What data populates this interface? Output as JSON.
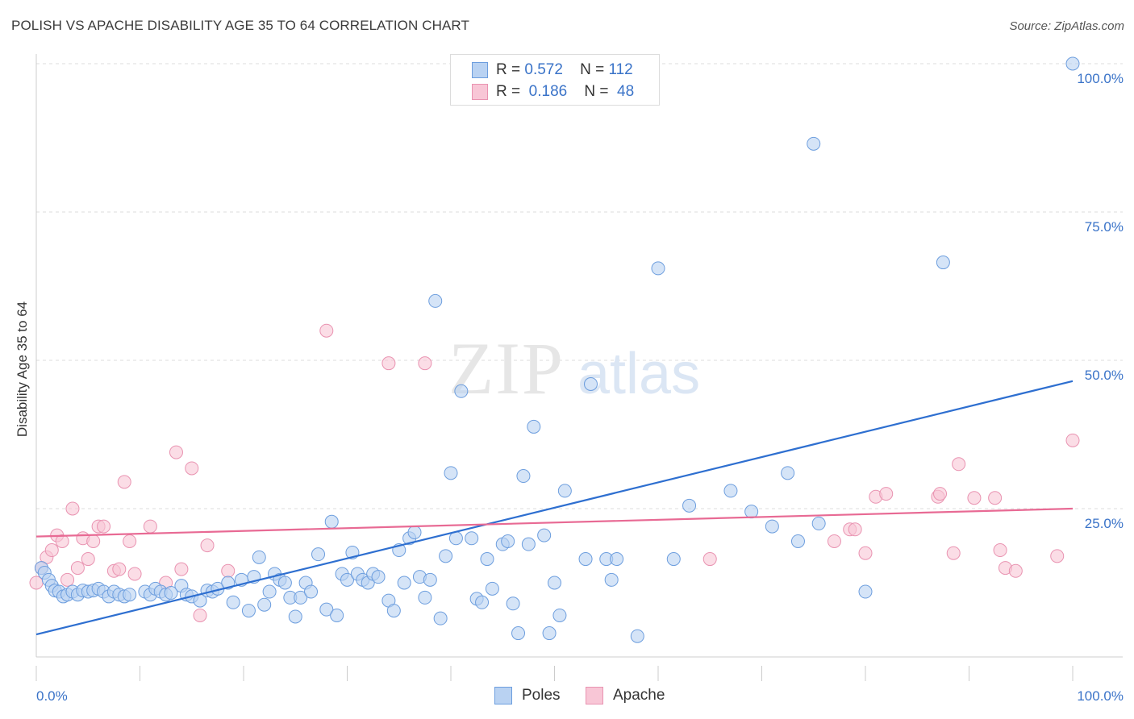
{
  "title": "POLISH VS APACHE DISABILITY AGE 35 TO 64 CORRELATION CHART",
  "source": "Source: ZipAtlas.com",
  "watermark": {
    "zip": "ZIP",
    "atlas": "atlas"
  },
  "legend": {
    "rows": [
      {
        "r_label": "R =",
        "r_value": "0.572",
        "n_label": "N =",
        "n_value": "112"
      },
      {
        "r_label": "R =",
        "r_value": "0.186",
        "n_label": "N =",
        "n_value": "48"
      }
    ]
  },
  "bottom_legend": [
    "Poles",
    "Apache"
  ],
  "colors": {
    "poles_fill": "#b9d2f2",
    "poles_stroke": "#6d9ede",
    "poles_line": "#2e6fd0",
    "apache_fill": "#f8c6d6",
    "apache_stroke": "#e993b1",
    "apache_line": "#e86a94",
    "tick_label": "#3a73c8",
    "grid": "#dcdcdc"
  },
  "chart_data": {
    "type": "scatter",
    "title": "POLISH VS APACHE DISABILITY AGE 35 TO 64 CORRELATION CHART",
    "xlabel": "",
    "ylabel": "Disability Age 35 to 64",
    "xlim": [
      0,
      100
    ],
    "ylim": [
      0,
      100
    ],
    "x_tick_labels": [
      "0.0%",
      "100.0%"
    ],
    "y_tick_labels": [
      "25.0%",
      "50.0%",
      "75.0%",
      "100.0%"
    ],
    "y_ticks": [
      25,
      50,
      75,
      100
    ],
    "grid": true,
    "series": [
      {
        "name": "Poles",
        "trendline": [
          [
            0,
            3.8
          ],
          [
            100,
            46.5
          ]
        ],
        "points": [
          [
            0.5,
            15.0
          ],
          [
            0.8,
            14.2
          ],
          [
            1.2,
            13.0
          ],
          [
            1.5,
            12.0
          ],
          [
            1.8,
            11.2
          ],
          [
            2.2,
            11.0
          ],
          [
            2.6,
            10.2
          ],
          [
            3.0,
            10.5
          ],
          [
            3.5,
            11.0
          ],
          [
            4.0,
            10.5
          ],
          [
            4.5,
            11.2
          ],
          [
            5.0,
            11.0
          ],
          [
            5.5,
            11.2
          ],
          [
            6.0,
            11.5
          ],
          [
            6.5,
            11.0
          ],
          [
            7.0,
            10.2
          ],
          [
            7.5,
            11.0
          ],
          [
            8.0,
            10.5
          ],
          [
            8.5,
            10.2
          ],
          [
            9.0,
            10.5
          ],
          [
            10.5,
            11.0
          ],
          [
            11.0,
            10.5
          ],
          [
            11.5,
            11.5
          ],
          [
            12.0,
            11.0
          ],
          [
            12.5,
            10.5
          ],
          [
            13.0,
            10.8
          ],
          [
            14.0,
            12.0
          ],
          [
            14.5,
            10.5
          ],
          [
            15.0,
            10.2
          ],
          [
            15.8,
            9.5
          ],
          [
            16.5,
            11.2
          ],
          [
            17.0,
            11.0
          ],
          [
            17.5,
            11.5
          ],
          [
            18.5,
            12.5
          ],
          [
            19.0,
            9.2
          ],
          [
            19.8,
            13.0
          ],
          [
            20.5,
            7.8
          ],
          [
            21.0,
            13.5
          ],
          [
            21.5,
            16.8
          ],
          [
            22.0,
            8.8
          ],
          [
            22.5,
            11.0
          ],
          [
            23.0,
            14.0
          ],
          [
            23.5,
            13.0
          ],
          [
            24.0,
            12.5
          ],
          [
            24.5,
            10.0
          ],
          [
            25.0,
            6.8
          ],
          [
            25.5,
            10.0
          ],
          [
            26.0,
            12.5
          ],
          [
            26.5,
            11.0
          ],
          [
            27.2,
            17.3
          ],
          [
            28.0,
            8.0
          ],
          [
            28.5,
            22.8
          ],
          [
            29.0,
            7.0
          ],
          [
            29.5,
            14.0
          ],
          [
            30.0,
            13.0
          ],
          [
            30.5,
            17.6
          ],
          [
            31.0,
            14.0
          ],
          [
            31.5,
            13.0
          ],
          [
            32.0,
            12.5
          ],
          [
            32.5,
            14.0
          ],
          [
            33.0,
            13.5
          ],
          [
            34.0,
            9.5
          ],
          [
            34.5,
            7.8
          ],
          [
            35.0,
            18.0
          ],
          [
            35.5,
            12.5
          ],
          [
            36.0,
            20.0
          ],
          [
            36.5,
            21.0
          ],
          [
            37.0,
            13.5
          ],
          [
            37.5,
            10.0
          ],
          [
            38.0,
            13.0
          ],
          [
            38.5,
            60.0
          ],
          [
            39.0,
            6.5
          ],
          [
            39.5,
            17.0
          ],
          [
            40.0,
            31.0
          ],
          [
            40.5,
            20.0
          ],
          [
            41.0,
            44.8
          ],
          [
            42.0,
            20.0
          ],
          [
            42.5,
            9.8
          ],
          [
            43.0,
            9.2
          ],
          [
            43.5,
            16.5
          ],
          [
            44.0,
            11.5
          ],
          [
            45.0,
            19.0
          ],
          [
            45.5,
            19.5
          ],
          [
            46.0,
            9.0
          ],
          [
            46.5,
            4.0
          ],
          [
            47.0,
            30.5
          ],
          [
            47.5,
            19.0
          ],
          [
            48.0,
            38.8
          ],
          [
            49.0,
            20.5
          ],
          [
            49.5,
            4.0
          ],
          [
            50.0,
            12.5
          ],
          [
            50.5,
            7.0
          ],
          [
            51.0,
            28.0
          ],
          [
            53.0,
            16.5
          ],
          [
            53.5,
            46.0
          ],
          [
            55.0,
            16.5
          ],
          [
            55.5,
            13.0
          ],
          [
            56.0,
            16.5
          ],
          [
            58.0,
            3.5
          ],
          [
            60.0,
            65.5
          ],
          [
            61.5,
            16.5
          ],
          [
            75.0,
            86.5
          ],
          [
            75.5,
            22.5
          ],
          [
            80.0,
            11.0
          ],
          [
            87.5,
            66.5
          ],
          [
            100.0,
            100.0
          ],
          [
            63.0,
            25.5
          ],
          [
            67.0,
            28.0
          ],
          [
            69.0,
            24.5
          ],
          [
            71.0,
            22.0
          ],
          [
            72.5,
            31.0
          ],
          [
            73.5,
            19.5
          ]
        ]
      },
      {
        "name": "Apache",
        "trendline": [
          [
            0,
            20.3
          ],
          [
            100,
            25.0
          ]
        ],
        "points": [
          [
            0.0,
            12.5
          ],
          [
            0.5,
            15.0
          ],
          [
            1.0,
            16.8
          ],
          [
            1.5,
            18.0
          ],
          [
            2.0,
            20.5
          ],
          [
            2.5,
            19.5
          ],
          [
            3.0,
            13.0
          ],
          [
            3.5,
            25.0
          ],
          [
            4.0,
            15.0
          ],
          [
            4.5,
            20.0
          ],
          [
            5.0,
            16.5
          ],
          [
            5.5,
            19.5
          ],
          [
            6.0,
            22.0
          ],
          [
            6.5,
            22.0
          ],
          [
            7.5,
            14.5
          ],
          [
            8.0,
            14.8
          ],
          [
            8.5,
            29.5
          ],
          [
            9.0,
            19.5
          ],
          [
            9.5,
            14.0
          ],
          [
            11.0,
            22.0
          ],
          [
            12.5,
            12.5
          ],
          [
            13.5,
            34.5
          ],
          [
            15.0,
            31.8
          ],
          [
            15.8,
            7.0
          ],
          [
            16.5,
            18.8
          ],
          [
            18.5,
            14.5
          ],
          [
            28.0,
            55.0
          ],
          [
            34.0,
            49.5
          ],
          [
            37.5,
            49.5
          ],
          [
            65.0,
            16.5
          ],
          [
            77.0,
            19.5
          ],
          [
            78.5,
            21.5
          ],
          [
            79.0,
            21.5
          ],
          [
            80.0,
            17.5
          ],
          [
            81.0,
            27.0
          ],
          [
            82.0,
            27.5
          ],
          [
            87.0,
            27.0
          ],
          [
            87.2,
            27.5
          ],
          [
            88.5,
            17.5
          ],
          [
            89.0,
            32.5
          ],
          [
            90.5,
            26.8
          ],
          [
            92.5,
            26.8
          ],
          [
            93.0,
            18.0
          ],
          [
            93.5,
            15.0
          ],
          [
            94.5,
            14.5
          ],
          [
            98.5,
            17.0
          ],
          [
            100.0,
            36.5
          ],
          [
            14.0,
            14.8
          ]
        ]
      }
    ]
  }
}
